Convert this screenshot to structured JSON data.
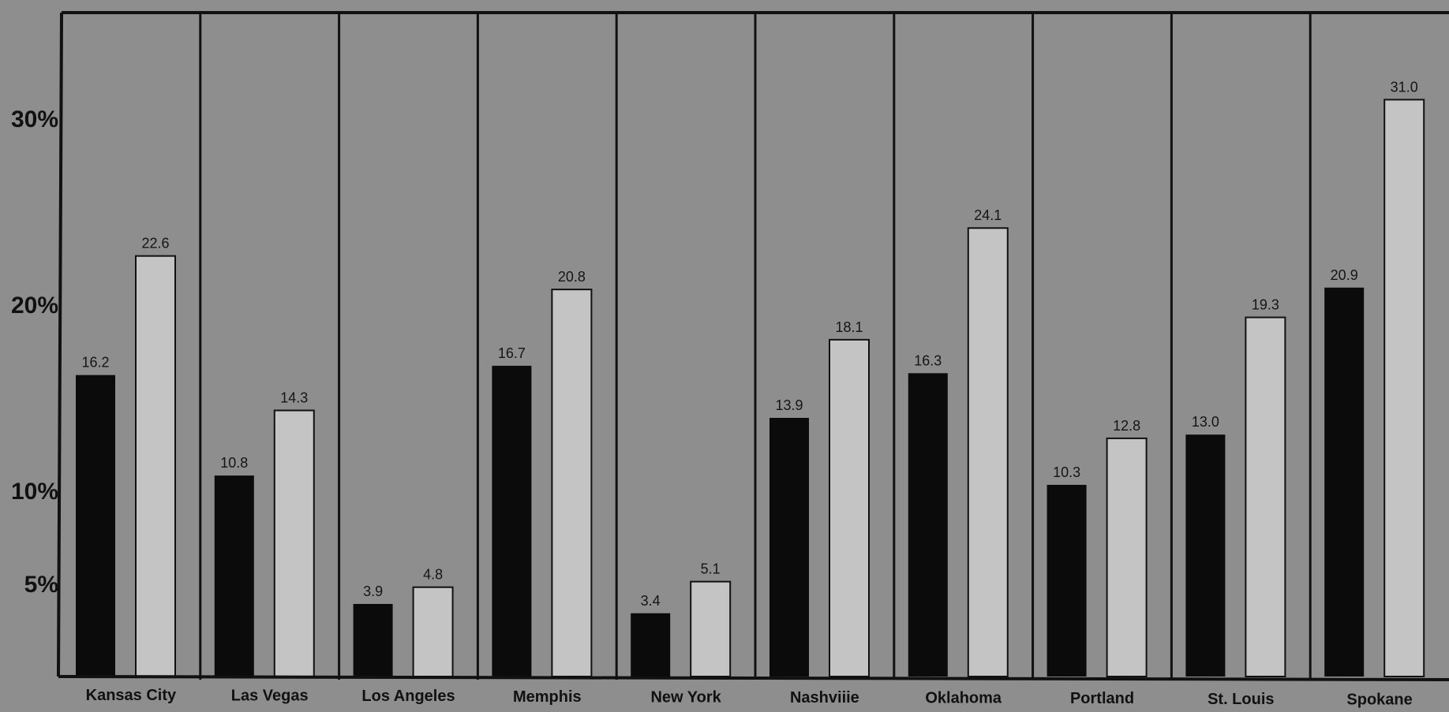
{
  "chart_data": {
    "type": "bar",
    "categories": [
      "Kansas City",
      "Las Vegas",
      "Los Angeles",
      "Memphis",
      "New York",
      "Nashviiie",
      "Oklahoma",
      "Portland",
      "St. Louis",
      "Spokane"
    ],
    "series": [
      {
        "color": "#0b0b0b",
        "values": [
          16.2,
          10.8,
          3.9,
          16.7,
          3.4,
          13.9,
          16.3,
          10.3,
          13.0,
          20.9
        ]
      },
      {
        "color": "#c4c4c4",
        "values": [
          22.6,
          14.3,
          4.8,
          20.8,
          5.1,
          18.1,
          24.1,
          12.8,
          19.3,
          31.0
        ]
      }
    ],
    "data_labels": [
      [
        "16.2",
        "10.8",
        "3.9",
        "16.7",
        "3.4",
        "13.9",
        "16.3",
        "10.3",
        "13.0",
        "20.9"
      ],
      [
        "22.6",
        "14.3",
        "4.8",
        "20.8",
        "5.1",
        "18.1",
        "24.1",
        "12.8",
        "19.3",
        "31.0"
      ]
    ],
    "yticks": [
      {
        "value": 5,
        "label": "5%"
      },
      {
        "value": 10,
        "label": "10%"
      },
      {
        "value": 20,
        "label": "20%"
      },
      {
        "value": 30,
        "label": "30%"
      }
    ],
    "ylim": [
      0,
      31
    ],
    "grid": "vertical dividers between categories",
    "colors": {
      "background": "#8e8e8e",
      "frame": "#111111"
    }
  }
}
